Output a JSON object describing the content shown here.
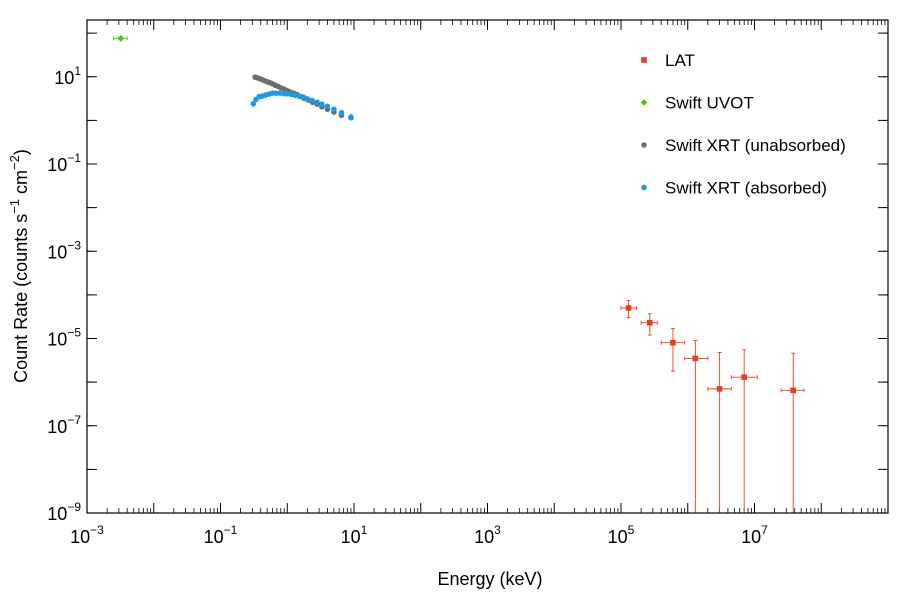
{
  "chart_data": {
    "type": "scatter",
    "title": "",
    "xlabel": "Energy (keV)",
    "ylabel": {
      "main": "Count Rate (counts s",
      "sup1": "−1",
      "mid": " cm",
      "sup2": "−2",
      "end": ")"
    },
    "x_scale": "log",
    "y_scale": "log",
    "xlim": [
      0.001,
      1000000000
    ],
    "ylim": [
      1e-09,
      200
    ],
    "x_ticks": [
      {
        "value": 0.001,
        "base": "10",
        "exp": "−3"
      },
      {
        "value": 0.1,
        "base": "10",
        "exp": "−1"
      },
      {
        "value": 10,
        "base": "10",
        "exp": "1"
      },
      {
        "value": 1000,
        "base": "10",
        "exp": "3"
      },
      {
        "value": 100000,
        "base": "10",
        "exp": "5"
      },
      {
        "value": 10000000,
        "base": "10",
        "exp": "7"
      }
    ],
    "y_ticks": [
      {
        "value": 1e-09,
        "base": "10",
        "exp": "−9"
      },
      {
        "value": 1e-07,
        "base": "10",
        "exp": "−7"
      },
      {
        "value": 1e-05,
        "base": "10",
        "exp": "−5"
      },
      {
        "value": 0.001,
        "base": "10",
        "exp": "−3"
      },
      {
        "value": 0.1,
        "base": "10",
        "exp": "−1"
      },
      {
        "value": 10,
        "base": "10",
        "exp": "1"
      }
    ],
    "legend_position": "top-right",
    "series": [
      {
        "name": "LAT",
        "color": "#e8401c",
        "marker": "square",
        "points": [
          {
            "x": 130000,
            "y": 5e-05,
            "xerr": [
              100000,
              170000
            ],
            "yerr": [
              3e-05,
              7.5e-05
            ]
          },
          {
            "x": 270000,
            "y": 2.3e-05,
            "xerr": [
              200000,
              350000
            ],
            "yerr": [
              1.2e-05,
              3.7e-05
            ]
          },
          {
            "x": 600000,
            "y": 8e-06,
            "xerr": [
              400000,
              900000
            ],
            "yerr": [
              1.8e-06,
              1.7e-05
            ]
          },
          {
            "x": 1300000,
            "y": 3.5e-06,
            "xerr": [
              900000,
              2000000
            ],
            "yerr": [
              1e-09,
              9e-06
            ]
          },
          {
            "x": 3000000,
            "y": 7e-07,
            "xerr": [
              2000000,
              4500000
            ],
            "yerr": [
              1e-09,
              4.8e-06
            ]
          },
          {
            "x": 7000000,
            "y": 1.3e-06,
            "xerr": [
              4500000,
              11000000
            ],
            "yerr": [
              1e-09,
              5.5e-06
            ]
          },
          {
            "x": 38000000,
            "y": 6.5e-07,
            "xerr": [
              25000000,
              55000000
            ],
            "yerr": [
              1e-09,
              4.6e-06
            ]
          }
        ]
      },
      {
        "name": "Swift UVOT",
        "color": "#44cc00",
        "marker": "diamond",
        "points": [
          {
            "x": 0.0032,
            "y": 76,
            "xerr": [
              0.0025,
              0.004
            ],
            "yerr": [
              70,
              82
            ]
          }
        ]
      },
      {
        "name": "Swift XRT (unabsorbed)",
        "color": "#6e6e6e",
        "marker": "circle",
        "points": [
          {
            "x": 0.33,
            "y": 9.8
          },
          {
            "x": 0.36,
            "y": 9.4
          },
          {
            "x": 0.39,
            "y": 9.0
          },
          {
            "x": 0.42,
            "y": 8.6
          },
          {
            "x": 0.46,
            "y": 8.1
          },
          {
            "x": 0.5,
            "y": 7.7
          },
          {
            "x": 0.55,
            "y": 7.3
          },
          {
            "x": 0.6,
            "y": 6.9
          },
          {
            "x": 0.66,
            "y": 6.4
          },
          {
            "x": 0.73,
            "y": 6.0
          },
          {
            "x": 0.8,
            "y": 5.6
          },
          {
            "x": 0.9,
            "y": 5.2
          },
          {
            "x": 1.0,
            "y": 4.8
          },
          {
            "x": 1.1,
            "y": 4.5
          },
          {
            "x": 1.25,
            "y": 4.2
          },
          {
            "x": 1.4,
            "y": 3.9
          },
          {
            "x": 1.6,
            "y": 3.5
          },
          {
            "x": 1.8,
            "y": 3.2
          },
          {
            "x": 2.1,
            "y": 2.9
          },
          {
            "x": 2.4,
            "y": 2.6
          },
          {
            "x": 2.8,
            "y": 2.35
          },
          {
            "x": 3.3,
            "y": 2.05
          },
          {
            "x": 4.0,
            "y": 1.8
          },
          {
            "x": 5.0,
            "y": 1.55
          },
          {
            "x": 6.5,
            "y": 1.3
          },
          {
            "x": 9.0,
            "y": 1.15
          }
        ]
      },
      {
        "name": "Swift XRT (absorbed)",
        "color": "#1a9be6",
        "marker": "circle",
        "points": [
          {
            "x": 0.31,
            "y": 2.4
          },
          {
            "x": 0.34,
            "y": 3.0
          },
          {
            "x": 0.38,
            "y": 3.5
          },
          {
            "x": 0.42,
            "y": 3.6
          },
          {
            "x": 0.47,
            "y": 3.8
          },
          {
            "x": 0.53,
            "y": 4.0
          },
          {
            "x": 0.6,
            "y": 4.2
          },
          {
            "x": 0.68,
            "y": 4.2
          },
          {
            "x": 0.78,
            "y": 4.2
          },
          {
            "x": 0.9,
            "y": 4.1
          },
          {
            "x": 1.0,
            "y": 4.05
          },
          {
            "x": 1.15,
            "y": 3.95
          },
          {
            "x": 1.3,
            "y": 3.8
          },
          {
            "x": 1.5,
            "y": 3.6
          },
          {
            "x": 1.75,
            "y": 3.4
          },
          {
            "x": 2.0,
            "y": 3.1
          },
          {
            "x": 2.35,
            "y": 2.85
          },
          {
            "x": 2.8,
            "y": 2.6
          },
          {
            "x": 3.3,
            "y": 2.35
          },
          {
            "x": 4.0,
            "y": 2.1
          },
          {
            "x": 5.0,
            "y": 1.8
          },
          {
            "x": 6.5,
            "y": 1.5
          },
          {
            "x": 9.0,
            "y": 1.2
          }
        ]
      }
    ]
  }
}
